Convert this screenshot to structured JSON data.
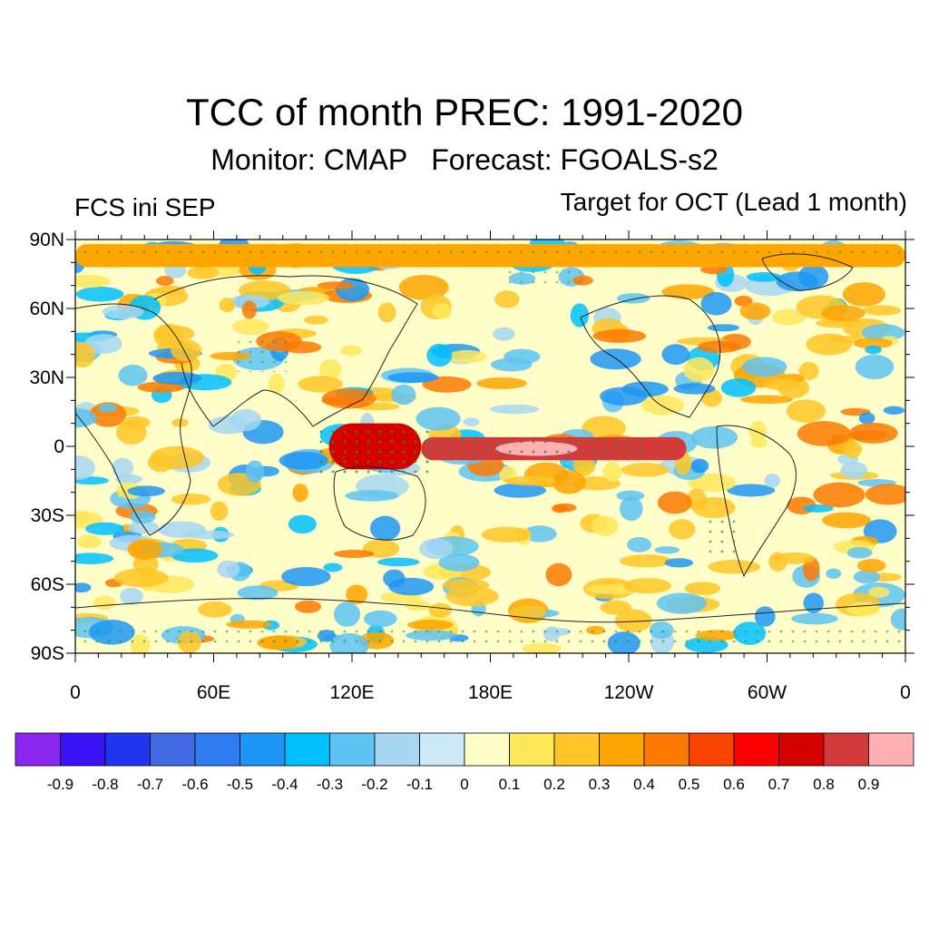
{
  "title": "TCC of month PREC: 1991-2020",
  "subtitle": "Monitor: CMAP   Forecast: FGOALS-s2",
  "left_note": "FCS ini SEP",
  "right_note": "Target for OCT (Lead 1 month)",
  "map": {
    "lat_labels": [
      "90N",
      "60N",
      "30N",
      "0",
      "30S",
      "60S",
      "90S"
    ],
    "lon_labels": [
      "0",
      "60E",
      "120E",
      "180E",
      "120W",
      "60W",
      "0"
    ],
    "lat_range": [
      -90,
      90
    ],
    "lon_range": [
      0,
      360
    ],
    "field": "temporal correlation coefficient",
    "significance_markers": "green dots",
    "features": [
      {
        "name": "equatorial band",
        "lon": [
          150,
          265
        ],
        "lat": [
          -6,
          4
        ],
        "value": 0.8
      },
      {
        "name": "maritime continent",
        "lon": [
          110,
          150
        ],
        "lat": [
          -10,
          10
        ],
        "value": 0.7
      },
      {
        "name": "arctic rim",
        "lon": [
          0,
          360
        ],
        "lat": [
          78,
          88
        ],
        "value": 0.4
      }
    ]
  },
  "colorbar": {
    "levels": [
      "-0.9",
      "-0.8",
      "-0.7",
      "-0.6",
      "-0.5",
      "-0.4",
      "-0.3",
      "-0.2",
      "-0.1",
      "0",
      "0.1",
      "0.2",
      "0.3",
      "0.4",
      "0.5",
      "0.6",
      "0.7",
      "0.8",
      "0.9"
    ],
    "colors": [
      "#8a26f0",
      "#3a12f5",
      "#1f36ee",
      "#4169e1",
      "#2f7cf0",
      "#1e96f5",
      "#00bfff",
      "#5ec3f3",
      "#a6d6f2",
      "#cde8f7",
      "#fffdc8",
      "#ffe75a",
      "#fec627",
      "#fea500",
      "#fb7a02",
      "#f94400",
      "#fe0000",
      "#d50000",
      "#d33a3a",
      "#ffb0b3"
    ]
  },
  "colors": {
    "ocean_base": "#fffdc8",
    "coast": "#222222"
  }
}
